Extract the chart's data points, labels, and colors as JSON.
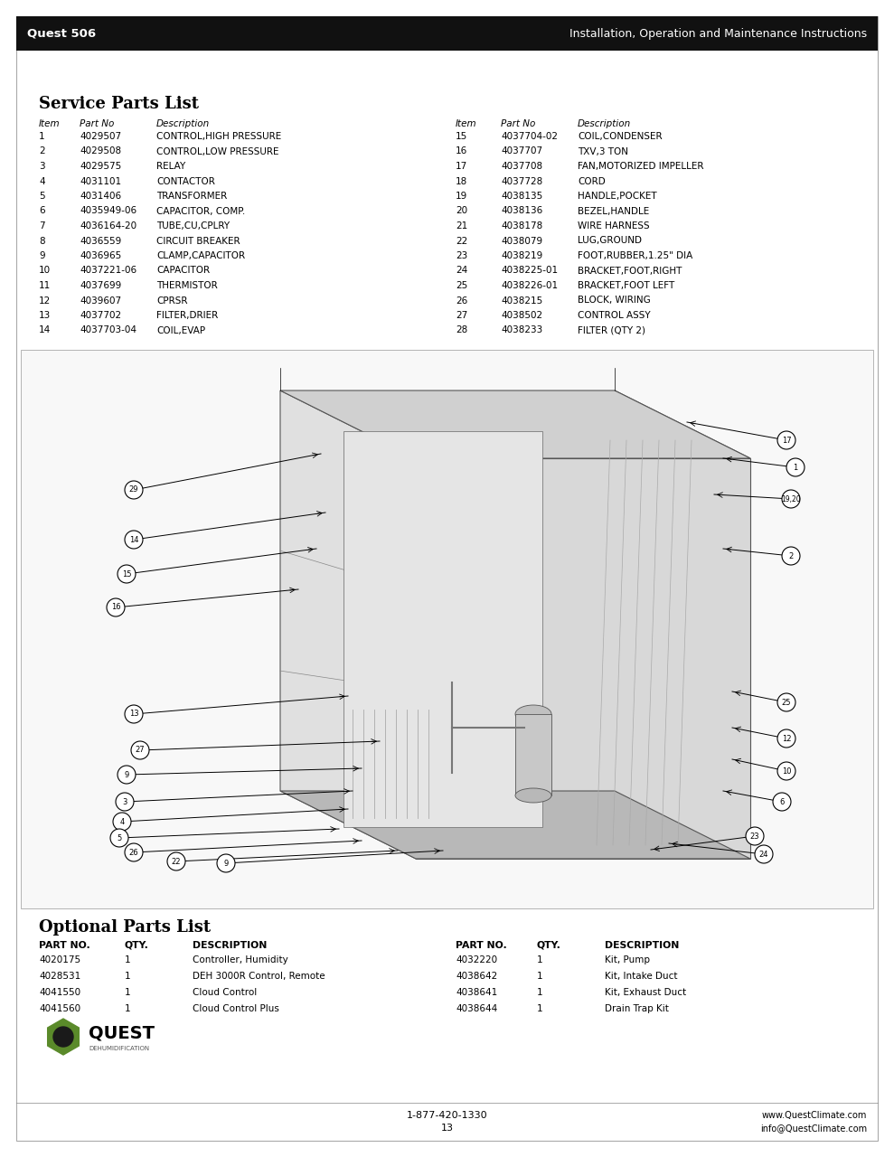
{
  "page_bg": "#ffffff",
  "header_bg": "#1a1a1a",
  "header_text_color": "#ffffff",
  "header_left": "Quest 506",
  "header_right": "Installation, Operation and Maintenance Instructions",
  "service_parts_title": "Service Parts List",
  "optional_parts_title": "Optional Parts List",
  "col_headers_left": [
    "Item",
    "Part No",
    "Description"
  ],
  "col_headers_right": [
    "Item",
    "Part No",
    "Description"
  ],
  "parts_left": [
    [
      "1",
      "4029507",
      "CONTROL,HIGH PRESSURE"
    ],
    [
      "2",
      "4029508",
      "CONTROL,LOW PRESSURE"
    ],
    [
      "3",
      "4029575",
      "RELAY"
    ],
    [
      "4",
      "4031101",
      "CONTACTOR"
    ],
    [
      "5",
      "4031406",
      "TRANSFORMER"
    ],
    [
      "6",
      "4035949-06",
      "CAPACITOR, COMP."
    ],
    [
      "7",
      "4036164-20",
      "TUBE,CU,CPLRY"
    ],
    [
      "8",
      "4036559",
      "CIRCUIT BREAKER"
    ],
    [
      "9",
      "4036965",
      "CLAMP,CAPACITOR"
    ],
    [
      "10",
      "4037221-06",
      "CAPACITOR"
    ],
    [
      "11",
      "4037699",
      "THERMISTOR"
    ],
    [
      "12",
      "4039607",
      "CPRSR"
    ],
    [
      "13",
      "4037702",
      "FILTER,DRIER"
    ],
    [
      "14",
      "4037703-04",
      "COIL,EVAP"
    ]
  ],
  "parts_right": [
    [
      "15",
      "4037704-02",
      "COIL,CONDENSER"
    ],
    [
      "16",
      "4037707",
      "TXV,3 TON"
    ],
    [
      "17",
      "4037708",
      "FAN,MOTORIZED IMPELLER"
    ],
    [
      "18",
      "4037728",
      "CORD"
    ],
    [
      "19",
      "4038135",
      "HANDLE,POCKET"
    ],
    [
      "20",
      "4038136",
      "BEZEL,HANDLE"
    ],
    [
      "21",
      "4038178",
      "WIRE HARNESS"
    ],
    [
      "22",
      "4038079",
      "LUG,GROUND"
    ],
    [
      "23",
      "4038219",
      "FOOT,RUBBER,1.25\" DIA"
    ],
    [
      "24",
      "4038225-01",
      "BRACKET,FOOT,RIGHT"
    ],
    [
      "25",
      "4038226-01",
      "BRACKET,FOOT LEFT"
    ],
    [
      "26",
      "4038215",
      "BLOCK, WIRING"
    ],
    [
      "27",
      "4038502",
      "CONTROL ASSY"
    ],
    [
      "28",
      "4038233",
      "FILTER (QTY 2)"
    ]
  ],
  "optional_col_headers": [
    "PART NO.",
    "QTY.",
    "DESCRIPTION"
  ],
  "optional_left": [
    [
      "4020175",
      "1",
      "Controller, Humidity"
    ],
    [
      "4028531",
      "1",
      "DEH 3000R Control, Remote"
    ],
    [
      "4041550",
      "1",
      "Cloud Control"
    ],
    [
      "4041560",
      "1",
      "Cloud Control Plus"
    ]
  ],
  "optional_right": [
    [
      "4032220",
      "1",
      "Kit, Pump"
    ],
    [
      "4038642",
      "1",
      "Kit, Intake Duct"
    ],
    [
      "4038641",
      "1",
      "Kit, Exhaust Duct"
    ],
    [
      "4038644",
      "1",
      "Drain Trap Kit"
    ]
  ],
  "footer_phone": "1-877-420-1330",
  "footer_page": "13",
  "footer_website": "www.QuestClimate.com",
  "footer_email": "info@QuestClimate.com",
  "logo_color": "#5a8a2a",
  "logo_text": "QUEST",
  "logo_subtext": "DEHUMIDIFICATION"
}
